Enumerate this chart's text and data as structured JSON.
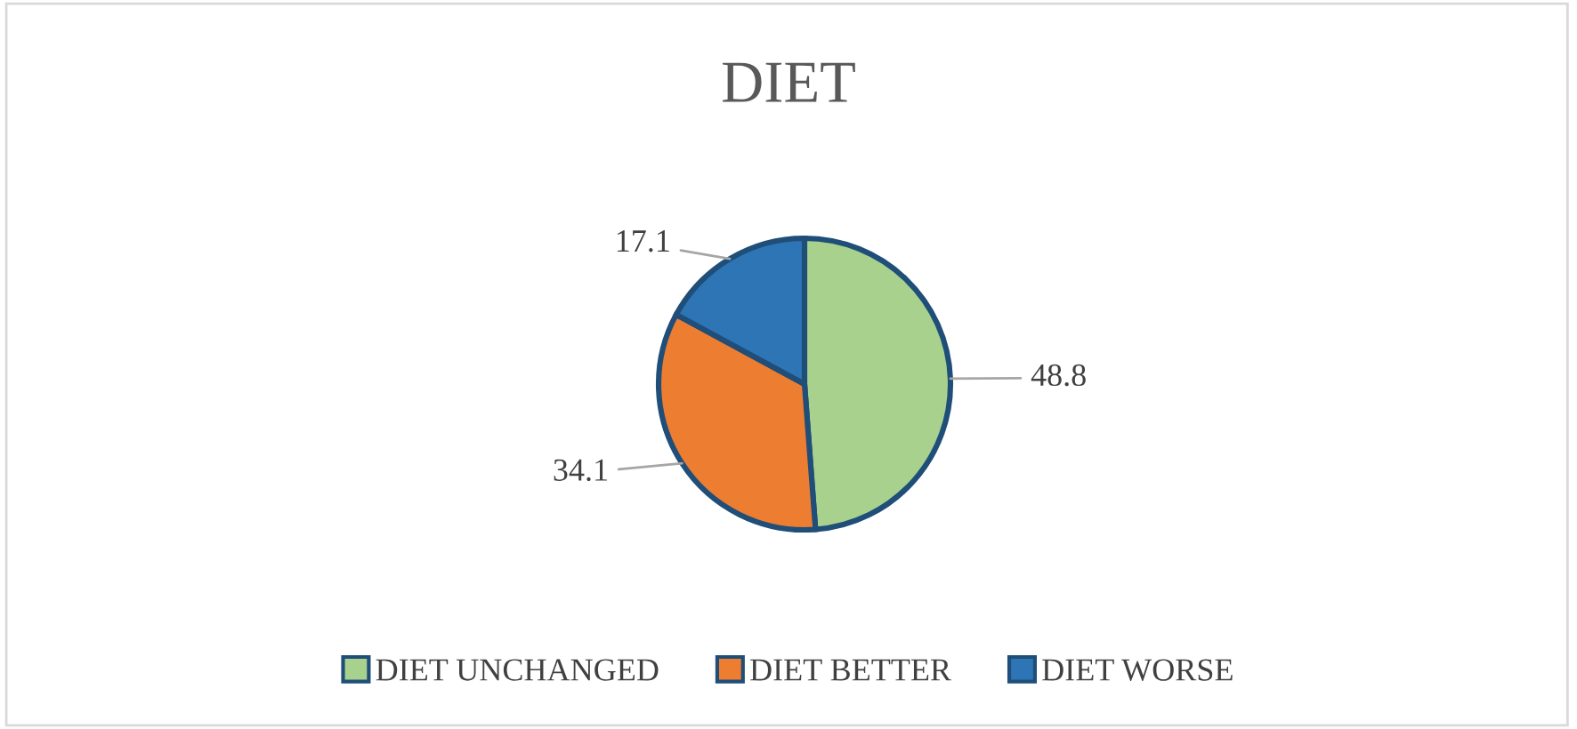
{
  "chart_data": {
    "type": "pie",
    "title": "DIET",
    "categories": [
      "DIET UNCHANGED",
      "DIET BETTER",
      "DIET WORSE"
    ],
    "values": [
      48.8,
      34.1,
      17.1
    ],
    "colors": [
      "#a9d18e",
      "#ed7d31",
      "#2e75b6"
    ],
    "data_labels": true,
    "legend": "bottom"
  }
}
